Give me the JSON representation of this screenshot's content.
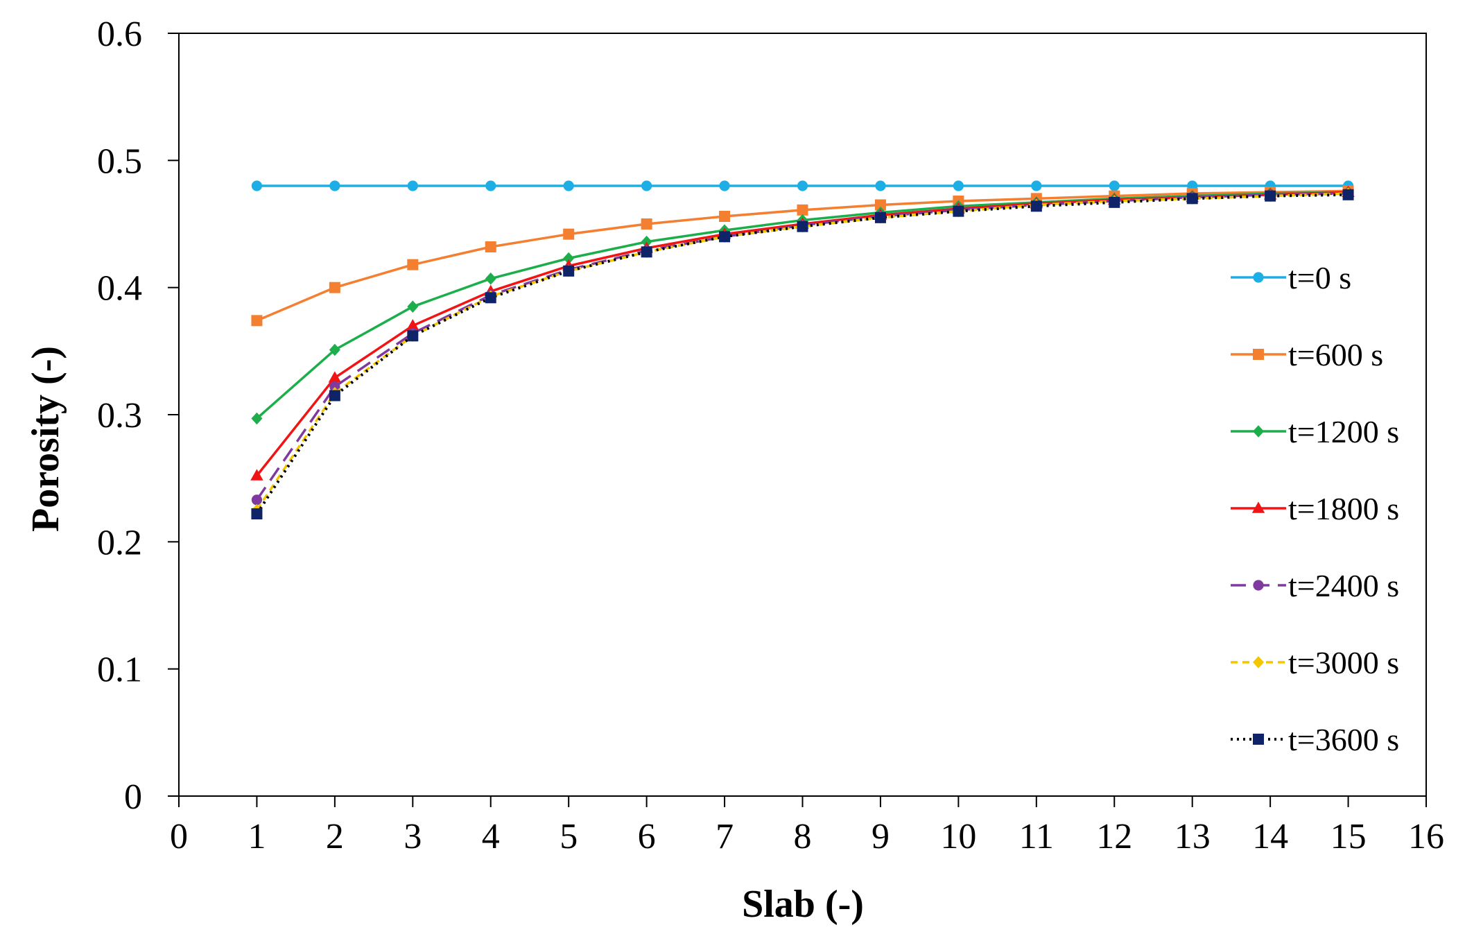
{
  "chart_data": {
    "type": "line",
    "title": "",
    "xlabel": "Slab (-)",
    "ylabel": "Porosity (-)",
    "xlim": [
      0,
      16
    ],
    "ylim": [
      0,
      0.6
    ],
    "x_ticks": [
      "0",
      "1",
      "2",
      "3",
      "4",
      "5",
      "6",
      "7",
      "8",
      "9",
      "10",
      "11",
      "12",
      "13",
      "14",
      "15",
      "16"
    ],
    "y_ticks": [
      "0",
      "0.1",
      "0.2",
      "0.3",
      "0.4",
      "0.5",
      "0.6"
    ],
    "grid": false,
    "legend_position": "right",
    "x": [
      1,
      2,
      3,
      4,
      5,
      6,
      7,
      8,
      9,
      10,
      11,
      12,
      13,
      14,
      15
    ],
    "series": [
      {
        "name": "t=0 s",
        "color": "#1EAEE6",
        "marker": "circle",
        "dash": "solid",
        "values": [
          0.48,
          0.48,
          0.48,
          0.48,
          0.48,
          0.48,
          0.48,
          0.48,
          0.48,
          0.48,
          0.48,
          0.48,
          0.48,
          0.48,
          0.48
        ]
      },
      {
        "name": "t=600 s",
        "color": "#F47F30",
        "marker": "square",
        "dash": "solid",
        "values": [
          0.374,
          0.4,
          0.418,
          0.432,
          0.442,
          0.45,
          0.456,
          0.461,
          0.465,
          0.468,
          0.47,
          0.472,
          0.474,
          0.475,
          0.476
        ]
      },
      {
        "name": "t=1200 s",
        "color": "#1BAE4A",
        "marker": "diamond",
        "dash": "solid",
        "values": [
          0.297,
          0.351,
          0.385,
          0.407,
          0.423,
          0.436,
          0.445,
          0.453,
          0.459,
          0.464,
          0.467,
          0.47,
          0.472,
          0.474,
          0.475
        ]
      },
      {
        "name": "t=1800 s",
        "color": "#F01414",
        "marker": "triangle",
        "dash": "solid",
        "values": [
          0.252,
          0.329,
          0.37,
          0.397,
          0.417,
          0.431,
          0.442,
          0.45,
          0.457,
          0.462,
          0.466,
          0.469,
          0.471,
          0.473,
          0.475
        ]
      },
      {
        "name": "t=2400 s",
        "color": "#7E3A9E",
        "marker": "circle",
        "dash": "long-dash",
        "values": [
          0.233,
          0.322,
          0.364,
          0.394,
          0.414,
          0.429,
          0.44,
          0.449,
          0.456,
          0.461,
          0.465,
          0.468,
          0.471,
          0.473,
          0.474
        ]
      },
      {
        "name": "t=3000 s",
        "color": "#F5C500",
        "marker": "diamond",
        "dash": "dashed",
        "values": [
          0.225,
          0.317,
          0.362,
          0.393,
          0.413,
          0.428,
          0.44,
          0.448,
          0.455,
          0.46,
          0.465,
          0.468,
          0.47,
          0.472,
          0.474
        ]
      },
      {
        "name": "t=3600 s",
        "color": "#0F2468",
        "marker": "square",
        "dash": "dotted",
        "line_color": "#000000",
        "values": [
          0.222,
          0.315,
          0.362,
          0.392,
          0.413,
          0.428,
          0.44,
          0.448,
          0.455,
          0.46,
          0.464,
          0.467,
          0.47,
          0.472,
          0.473
        ]
      }
    ]
  }
}
